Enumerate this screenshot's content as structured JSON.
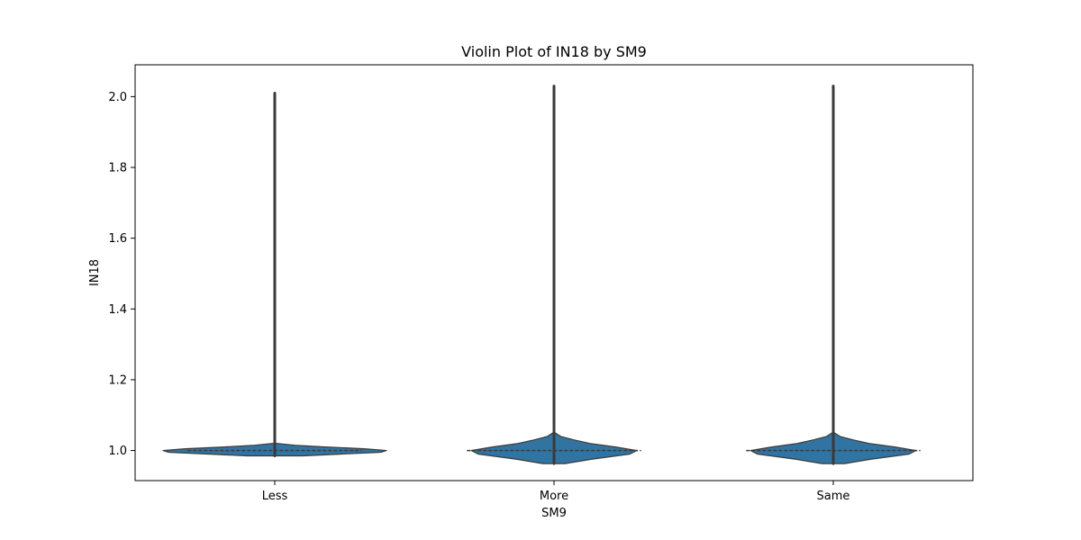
{
  "chart_data": {
    "type": "violin",
    "title": "Violin Plot of IN18 by SM9",
    "xlabel": "SM9",
    "ylabel": "IN18",
    "categories": [
      "Less",
      "More",
      "Same"
    ],
    "ylim": [
      0.915,
      2.09
    ],
    "yticks": [
      1.0,
      1.2,
      1.4,
      1.6,
      1.8,
      2.0
    ],
    "ytick_labels": [
      "1.0",
      "1.2",
      "1.4",
      "1.6",
      "1.8",
      "2.0"
    ],
    "grid": false,
    "violin_color": "#3274a1",
    "edge_color": "#3a3a3a",
    "violins": [
      {
        "category": "Less",
        "min": 0.985,
        "max": 2.01,
        "median": 1.0,
        "profile": [
          [
            0.985,
            0.25
          ],
          [
            0.99,
            0.6
          ],
          [
            0.995,
            0.95
          ],
          [
            1.0,
            1.0
          ],
          [
            1.005,
            0.8
          ],
          [
            1.01,
            0.45
          ],
          [
            1.015,
            0.18
          ],
          [
            1.02,
            0.02
          ]
        ]
      },
      {
        "category": "More",
        "min": 0.963,
        "max": 2.03,
        "median": 1.0,
        "profile": [
          [
            0.963,
            0.1
          ],
          [
            0.975,
            0.33
          ],
          [
            0.99,
            0.68
          ],
          [
            1.0,
            0.74
          ],
          [
            1.01,
            0.55
          ],
          [
            1.02,
            0.32
          ],
          [
            1.03,
            0.18
          ],
          [
            1.04,
            0.06
          ],
          [
            1.05,
            0.01
          ]
        ]
      },
      {
        "category": "Same",
        "min": 0.963,
        "max": 2.03,
        "median": 1.0,
        "profile": [
          [
            0.963,
            0.1
          ],
          [
            0.975,
            0.33
          ],
          [
            0.99,
            0.68
          ],
          [
            1.0,
            0.74
          ],
          [
            1.01,
            0.55
          ],
          [
            1.02,
            0.32
          ],
          [
            1.03,
            0.18
          ],
          [
            1.04,
            0.06
          ],
          [
            1.05,
            0.01
          ]
        ]
      }
    ]
  }
}
